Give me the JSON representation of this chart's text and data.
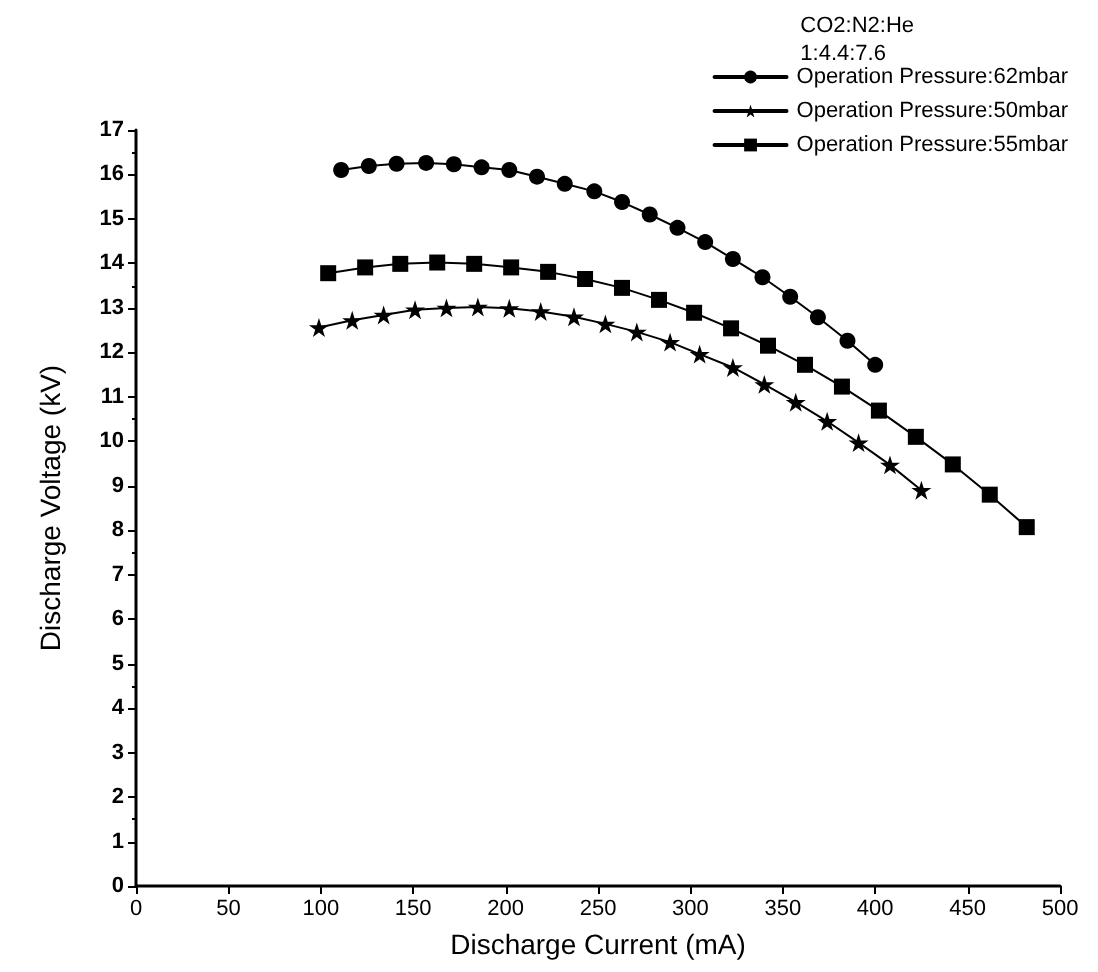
{
  "chart_data": {
    "type": "line",
    "xlabel": "Discharge Current (mA)",
    "ylabel": "Discharge Voltage (kV)",
    "legend_title": "CO2:N2:He\n1:4.4:7.6",
    "legend": "top right",
    "grid": false,
    "line_style": "solid",
    "xlim": [
      0,
      500
    ],
    "xticks": [
      0,
      50,
      100,
      150,
      200,
      250,
      300,
      350,
      400,
      450,
      500
    ],
    "ylim": [
      0,
      17
    ],
    "yticks": [
      0,
      1,
      2,
      3,
      4,
      5,
      6,
      7,
      8,
      9,
      10,
      11,
      12,
      13,
      14,
      15,
      16,
      17
    ],
    "series": [
      {
        "name": "Operation Pressure:62mbar",
        "color": "#000000",
        "marker": "circle",
        "x": [
          111,
          126,
          141,
          157,
          172,
          187,
          202,
          217,
          232,
          248,
          263,
          278,
          293,
          308,
          323,
          339,
          354,
          369,
          385,
          400
        ],
        "values": [
          16.1,
          16.19,
          16.24,
          16.26,
          16.23,
          16.16,
          16.1,
          15.95,
          15.79,
          15.62,
          15.38,
          15.1,
          14.8,
          14.48,
          14.1,
          13.69,
          13.25,
          12.79,
          12.26,
          11.72
        ]
      },
      {
        "name": "Operation Pressure:50mbar",
        "color": "#000000",
        "marker": "star",
        "x": [
          99,
          117,
          134,
          151,
          168,
          185,
          202,
          219,
          237,
          254,
          271,
          289,
          305,
          323,
          340,
          357,
          374,
          391,
          408,
          425
        ],
        "values": [
          12.56,
          12.72,
          12.84,
          12.96,
          13.0,
          13.02,
          12.99,
          12.92,
          12.8,
          12.64,
          12.46,
          12.23,
          11.96,
          11.66,
          11.28,
          10.88,
          10.45,
          9.97,
          9.47,
          8.9
        ]
      },
      {
        "name": "Operation Pressure:55mbar",
        "color": "#000000",
        "marker": "square",
        "x": [
          104,
          124,
          143,
          163,
          183,
          203,
          223,
          243,
          263,
          283,
          302,
          322,
          342,
          362,
          382,
          402,
          422,
          442,
          462,
          482
        ],
        "values": [
          13.78,
          13.91,
          13.99,
          14.02,
          13.99,
          13.91,
          13.81,
          13.65,
          13.45,
          13.18,
          12.89,
          12.54,
          12.15,
          11.72,
          11.23,
          10.69,
          10.1,
          9.48,
          8.8,
          8.07
        ]
      }
    ]
  }
}
